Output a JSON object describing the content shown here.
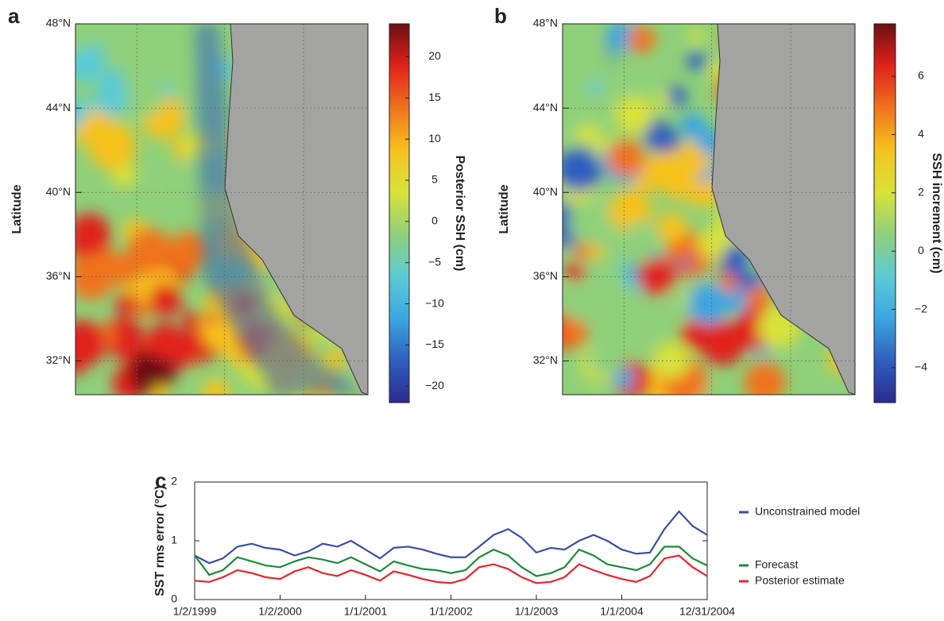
{
  "chart_data": [
    {
      "type": "map",
      "panel": "a",
      "ylabel": "Latitude",
      "ylim": [
        30.4,
        48
      ],
      "yticks": [
        {
          "value": 48,
          "label": "48°N"
        },
        {
          "value": 44,
          "label": "44°N"
        },
        {
          "value": 40,
          "label": "40°N"
        },
        {
          "value": 36,
          "label": "36°N"
        },
        {
          "value": 32,
          "label": "32°N"
        }
      ],
      "colorbar_label": "Posterior SSH (cm)",
      "clim": [
        -22,
        24
      ],
      "cticks": [
        {
          "value": -20,
          "label": "−20"
        },
        {
          "value": -15,
          "label": "−15"
        },
        {
          "value": -10,
          "label": "−10"
        },
        {
          "value": -5,
          "label": "−5"
        },
        0,
        5,
        10,
        15,
        20
      ],
      "colormap": [
        "#2b2a8f",
        "#2f5fbf",
        "#3ba6e0",
        "#5ccbd6",
        "#8fd07a",
        "#d8e23a",
        "#f6c21f",
        "#f0731e",
        "#e0221c",
        "#6b0f12"
      ]
    },
    {
      "type": "map",
      "panel": "b",
      "ylabel": "Latitude",
      "ylim": [
        30.4,
        48
      ],
      "yticks": [
        {
          "value": 48,
          "label": "48°N"
        },
        {
          "value": 44,
          "label": "44°N"
        },
        {
          "value": 40,
          "label": "40°N"
        },
        {
          "value": 36,
          "label": "36°N"
        },
        {
          "value": 32,
          "label": "32°N"
        }
      ],
      "colorbar_label": "SSH increment (cm)",
      "clim": [
        -5.2,
        7.8
      ],
      "cticks": [
        {
          "value": -4,
          "label": "−4"
        },
        {
          "value": -2,
          "label": "−2"
        },
        0,
        2,
        4,
        6
      ],
      "colormap": [
        "#2b2a8f",
        "#2f5fbf",
        "#3ba6e0",
        "#5ccbd6",
        "#8fd07a",
        "#d8e23a",
        "#f6c21f",
        "#f0731e",
        "#e0221c",
        "#6b0f12"
      ]
    },
    {
      "type": "line",
      "panel": "c",
      "ylabel": "SST rms error (°C)",
      "xlim": [
        1999,
        2005
      ],
      "ylim": [
        0,
        2
      ],
      "yticks": [
        0,
        1,
        2
      ],
      "xticks": [
        {
          "value": 1999,
          "label": "1/2/1999"
        },
        {
          "value": 2000,
          "label": "1/2/2000"
        },
        {
          "value": 2001,
          "label": "1/1/2001"
        },
        {
          "value": 2002,
          "label": "1/1/2002"
        },
        {
          "value": 2003,
          "label": "1/1/2003"
        },
        {
          "value": 2004,
          "label": "1/1/2004"
        },
        {
          "value": 2005,
          "label": "12/31/2004"
        }
      ],
      "legend": "right",
      "x": [
        1999,
        1999.17,
        1999.33,
        1999.5,
        1999.67,
        1999.83,
        2000,
        2000.17,
        2000.33,
        2000.5,
        2000.67,
        2000.83,
        2001,
        2001.17,
        2001.33,
        2001.5,
        2001.67,
        2001.83,
        2002,
        2002.17,
        2002.33,
        2002.5,
        2002.67,
        2002.83,
        2003,
        2003.17,
        2003.33,
        2003.5,
        2003.67,
        2003.83,
        2004,
        2004.17,
        2004.33,
        2004.5,
        2004.67,
        2004.83,
        2005
      ],
      "series": [
        {
          "name": "Unconstrained model",
          "color": "#3a4fa3",
          "values": [
            0.75,
            0.62,
            0.7,
            0.9,
            0.95,
            0.88,
            0.85,
            0.75,
            0.82,
            0.95,
            0.9,
            1.0,
            0.85,
            0.7,
            0.88,
            0.9,
            0.85,
            0.78,
            0.72,
            0.72,
            0.9,
            1.1,
            1.2,
            1.05,
            0.8,
            0.88,
            0.85,
            1.0,
            1.1,
            1.0,
            0.85,
            0.78,
            0.8,
            1.2,
            1.5,
            1.25,
            1.1
          ]
        },
        {
          "name": "Forecast",
          "color": "#1e8a3a",
          "values": [
            0.75,
            0.42,
            0.5,
            0.72,
            0.65,
            0.58,
            0.55,
            0.65,
            0.72,
            0.68,
            0.62,
            0.72,
            0.6,
            0.48,
            0.65,
            0.58,
            0.52,
            0.5,
            0.45,
            0.5,
            0.72,
            0.85,
            0.75,
            0.55,
            0.4,
            0.45,
            0.55,
            0.85,
            0.75,
            0.6,
            0.55,
            0.5,
            0.6,
            0.9,
            0.9,
            0.7,
            0.58
          ]
        },
        {
          "name": "Posterior estimate",
          "color": "#e3262b",
          "values": [
            0.32,
            0.3,
            0.38,
            0.5,
            0.45,
            0.38,
            0.35,
            0.48,
            0.55,
            0.45,
            0.4,
            0.5,
            0.42,
            0.32,
            0.48,
            0.42,
            0.35,
            0.3,
            0.28,
            0.35,
            0.55,
            0.6,
            0.52,
            0.38,
            0.28,
            0.3,
            0.38,
            0.6,
            0.5,
            0.42,
            0.35,
            0.3,
            0.4,
            0.7,
            0.75,
            0.55,
            0.4
          ]
        }
      ]
    }
  ]
}
